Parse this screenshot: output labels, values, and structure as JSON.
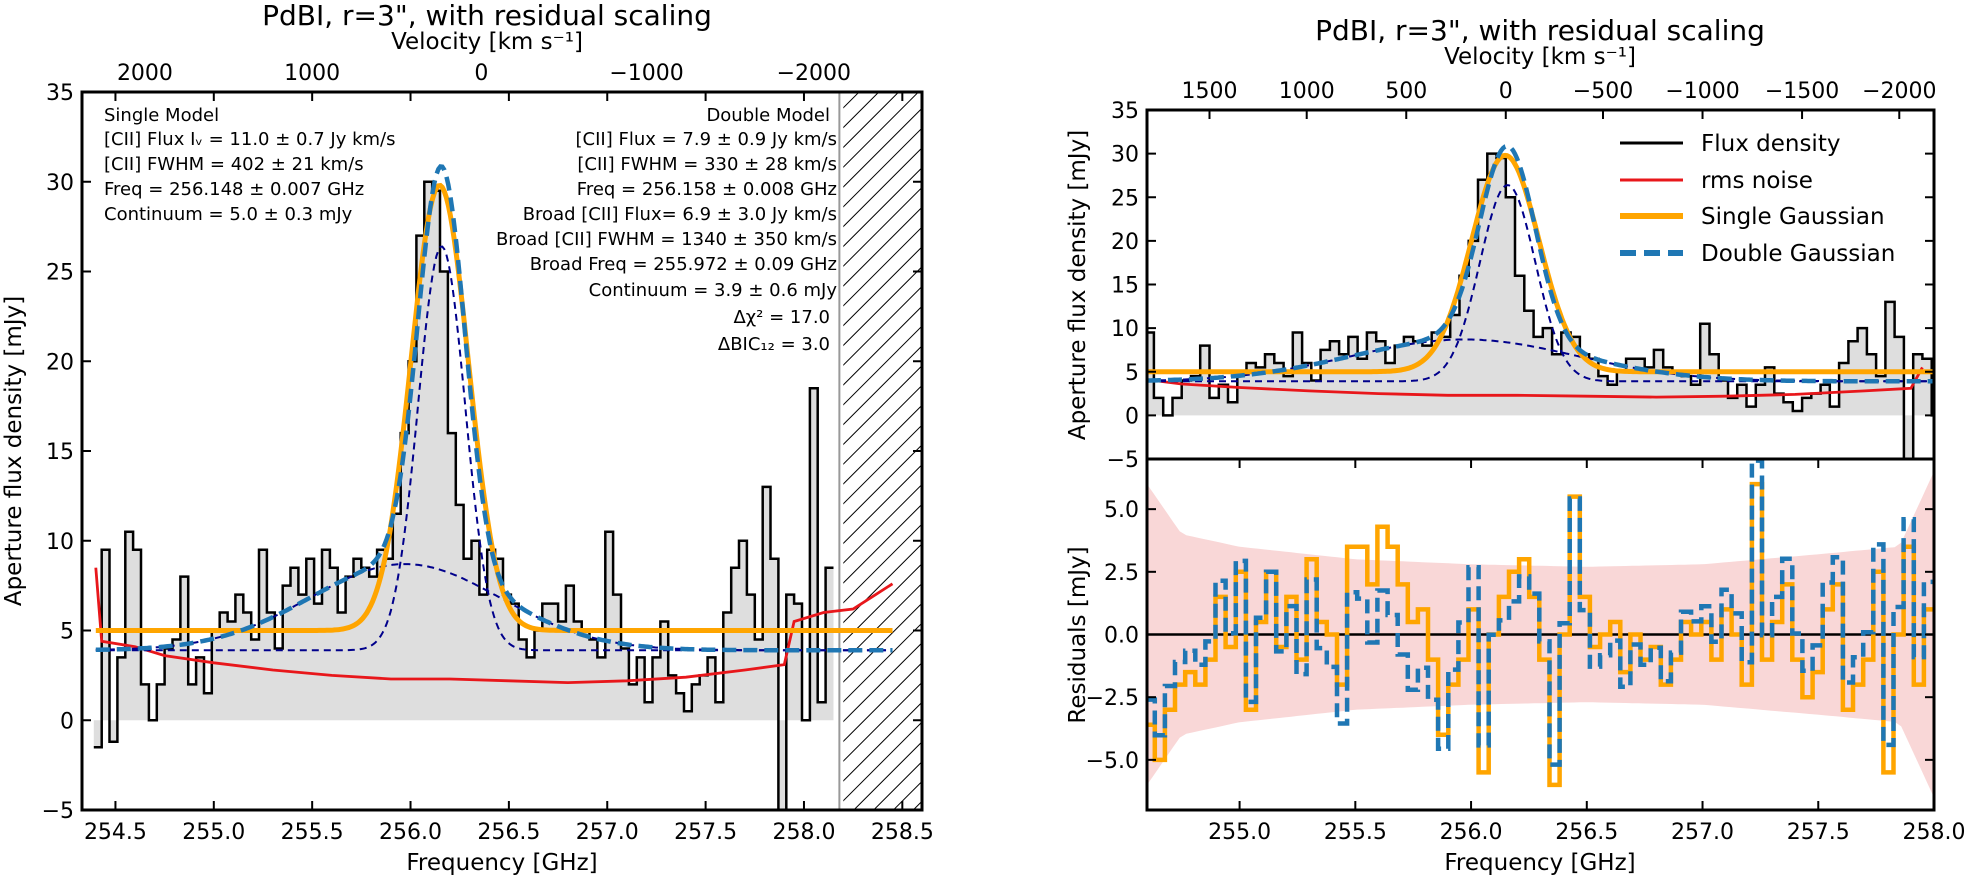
{
  "chart_data": [
    {
      "type": "line",
      "panel": "left",
      "title": "PdBI, r=3\", with residual scaling",
      "xlabel": "Frequency [GHz]",
      "ylabel": "Aperture flux density [mJy]",
      "top_axis_label": "Velocity [km s⁻¹]",
      "xlim": [
        254.33,
        258.6
      ],
      "ylim": [
        -5,
        35
      ],
      "x_ticks": [
        254.5,
        255.0,
        255.5,
        256.0,
        256.5,
        257.0,
        257.5,
        258.0,
        258.5
      ],
      "x_tick_labels": [
        "254.5",
        "255.0",
        "255.5",
        "256.0",
        "256.5",
        "257.0",
        "257.5",
        "258.0",
        "258.5"
      ],
      "y_ticks": [
        -5,
        0,
        5,
        10,
        15,
        20,
        25,
        30,
        35
      ],
      "y_tick_labels": [
        "−5",
        "0",
        "5",
        "10",
        "15",
        "20",
        "25",
        "30",
        "35"
      ],
      "top_ticks_ghz": [
        258.05,
        257.2,
        256.36,
        255.5,
        254.65
      ],
      "top_tick_labels": [
        "−2000",
        "−1000",
        "0",
        "1000",
        "2000"
      ],
      "flagged_region_ghz": [
        258.2,
        258.6
      ],
      "flagged_boundary_ghz": 258.18,
      "channel_width_ghz": 0.04,
      "flux_start_ghz": 254.39,
      "flux_density": [
        -1.5,
        9.5,
        -1.2,
        3.5,
        10.5,
        9.5,
        2.0,
        0.0,
        2.0,
        4.0,
        4.5,
        8.0,
        2.0,
        3.5,
        1.5,
        5.0,
        6.0,
        5.5,
        7.0,
        6.0,
        4.5,
        9.5,
        6.0,
        4.0,
        7.5,
        8.5,
        7.0,
        9.0,
        6.5,
        9.5,
        8.5,
        6.0,
        8.0,
        9.0,
        8.5,
        8.0,
        9.5,
        9.0,
        11.5,
        16.0,
        20.0,
        27.0,
        30.0,
        29.5,
        25.0,
        16.0,
        12.0,
        9.0,
        10.0,
        7.0,
        9.5,
        9.0,
        7.0,
        6.5,
        4.5,
        3.5,
        5.0,
        6.5,
        6.5,
        5.5,
        7.5,
        5.5,
        5.0,
        4.5,
        3.5,
        10.5,
        7.0,
        4.0,
        2.0,
        3.5,
        1.0,
        3.5,
        5.5,
        2.5,
        1.5,
        0.5,
        2.0,
        2.5,
        3.5,
        1.0,
        6.0,
        8.5,
        10.0,
        7.0,
        4.5,
        13.0,
        9.0,
        -5.0,
        7.0,
        6.5,
        0.0,
        18.5,
        1.0,
        8.5
      ],
      "rms_noise": [
        [
          254.4,
          8.5
        ],
        [
          254.43,
          4.4
        ],
        [
          254.6,
          4.1
        ],
        [
          254.75,
          3.6
        ],
        [
          255.0,
          3.2
        ],
        [
          255.3,
          2.8
        ],
        [
          255.6,
          2.5
        ],
        [
          255.9,
          2.3
        ],
        [
          256.2,
          2.3
        ],
        [
          256.5,
          2.2
        ],
        [
          256.8,
          2.1
        ],
        [
          257.1,
          2.2
        ],
        [
          257.4,
          2.4
        ],
        [
          257.7,
          2.8
        ],
        [
          257.9,
          3.1
        ],
        [
          257.95,
          5.5
        ],
        [
          258.1,
          6.0
        ],
        [
          258.25,
          6.2
        ],
        [
          258.35,
          6.9
        ],
        [
          258.45,
          7.6
        ]
      ],
      "single_model": {
        "freq_ghz": 256.148,
        "peak_mjy": 24.8,
        "fwhm_kms": 402,
        "continuum_mjy": 5.0
      },
      "double_model": {
        "narrow_freq_ghz": 256.158,
        "narrow_peak_mjy": 22.5,
        "narrow_fwhm_kms": 330,
        "broad_freq_ghz": 255.972,
        "broad_peak_mjy": 4.8,
        "broad_fwhm_kms": 1340,
        "continuum_mjy": 3.9
      },
      "annotations_single": [
        "Single Model",
        "[CII] Flux Iᵥ = 11.0 ± 0.7 Jy km/s",
        "[CII] FWHM = 402 ± 21 km/s",
        "Freq = 256.148 ± 0.007 GHz",
        "Continuum = 5.0 ± 0.3 mJy"
      ],
      "annotations_double": [
        "Double Model",
        "[CII] Flux = 7.9 ± 0.9 Jy km/s",
        "[CII] FWHM = 330 ± 28 km/s",
        "Freq = 256.158 ± 0.008 GHz",
        "Broad [CII] Flux= 6.9 ± 3.0 Jy km/s",
        "Broad [CII] FWHM = 1340 ± 350 km/s",
        "Broad Freq = 255.972 ± 0.09 GHz",
        "Continuum = 3.9 ± 0.6 mJy",
        "Δχ² =  17.0",
        "ΔBIC₁₂ =  3.0"
      ]
    },
    {
      "type": "line",
      "panel": "right-top",
      "title": "PdBI, r=3\", with residual scaling",
      "ylabel": "Aperture flux density [mJy]",
      "top_axis_label": "Velocity [km s⁻¹]",
      "xlim": [
        254.6,
        258.0
      ],
      "ylim": [
        -5,
        35
      ],
      "y_ticks": [
        -5,
        0,
        5,
        10,
        15,
        20,
        25,
        30,
        35
      ],
      "y_tick_labels": [
        "−5",
        "0",
        "5",
        "10",
        "15",
        "20",
        "25",
        "30",
        "35"
      ],
      "top_ticks_ghz": [
        257.85,
        257.43,
        257.0,
        256.57,
        256.15,
        255.72,
        255.29,
        254.87
      ],
      "top_tick_labels": [
        "−2000",
        "−1500",
        "−1000",
        "−500",
        "0",
        "500",
        "1000",
        "1500"
      ],
      "legend": [
        "Flux density",
        "rms noise",
        "Single Gaussian",
        "Double Gaussian"
      ],
      "legend_position": "top-right",
      "series_colors": {
        "flux": "#000000",
        "rms": "#e8171b",
        "single": "#ffa500",
        "double": "#1f77b4",
        "components": "#00008b"
      }
    },
    {
      "type": "line",
      "panel": "right-bottom",
      "xlabel": "Frequency [GHz]",
      "ylabel": "Residuals [mJy]",
      "xlim": [
        254.6,
        258.0
      ],
      "ylim": [
        -7,
        7
      ],
      "x_ticks": [
        255.0,
        255.5,
        256.0,
        256.5,
        257.0,
        257.5,
        258.0
      ],
      "x_tick_labels": [
        "255.0",
        "255.5",
        "256.0",
        "256.5",
        "257.0",
        "257.5",
        "258.0"
      ],
      "y_ticks": [
        -5.0,
        -2.5,
        0.0,
        2.5,
        5.0
      ],
      "y_tick_labels": [
        "−5.0",
        "−2.5",
        "0.0",
        "2.5",
        "5.0"
      ],
      "residual_band_color": "#f9d7d7",
      "residual_band_halfwidth": [
        [
          254.6,
          6.0
        ],
        [
          254.75,
          4.0
        ],
        [
          255.0,
          3.5
        ],
        [
          255.5,
          3.0
        ],
        [
          256.0,
          2.8
        ],
        [
          256.5,
          2.7
        ],
        [
          257.0,
          2.8
        ],
        [
          257.5,
          3.2
        ],
        [
          257.85,
          3.5
        ],
        [
          258.0,
          6.5
        ]
      ],
      "single_residuals": [
        -3.6,
        -5.0,
        -3.0,
        -2.0,
        -1.5,
        -2.0,
        -1.0,
        1.5,
        -0.5,
        2.5,
        -3.0,
        0.5,
        2.5,
        -0.5,
        1.5,
        -1.0,
        3.0,
        0.5,
        0.0,
        -2.0,
        3.5,
        3.5,
        2.0,
        4.3,
        3.5,
        2.0,
        0.5,
        1.0,
        -1.0,
        -4.0,
        -2.0,
        -1.0,
        1.0,
        -5.5,
        0.0,
        1.5,
        2.5,
        3.0,
        1.5,
        -1.0,
        -6.0,
        0.0,
        5.5,
        1.5,
        -0.5,
        0.0,
        0.5,
        -1.5,
        0.0,
        -1.0,
        -0.5,
        -2.0,
        -1.0,
        0.5,
        0.0,
        0.5,
        -1.0,
        1.0,
        0.0,
        -2.0,
        6.0,
        -1.0,
        0.5,
        2.0,
        -1.0,
        -2.5,
        -1.5,
        1.0,
        2.0,
        -3.0,
        -2.0,
        -1.0,
        2.5,
        -5.5,
        0.0,
        3.5,
        -2.0,
        1.0
      ]
    }
  ]
}
